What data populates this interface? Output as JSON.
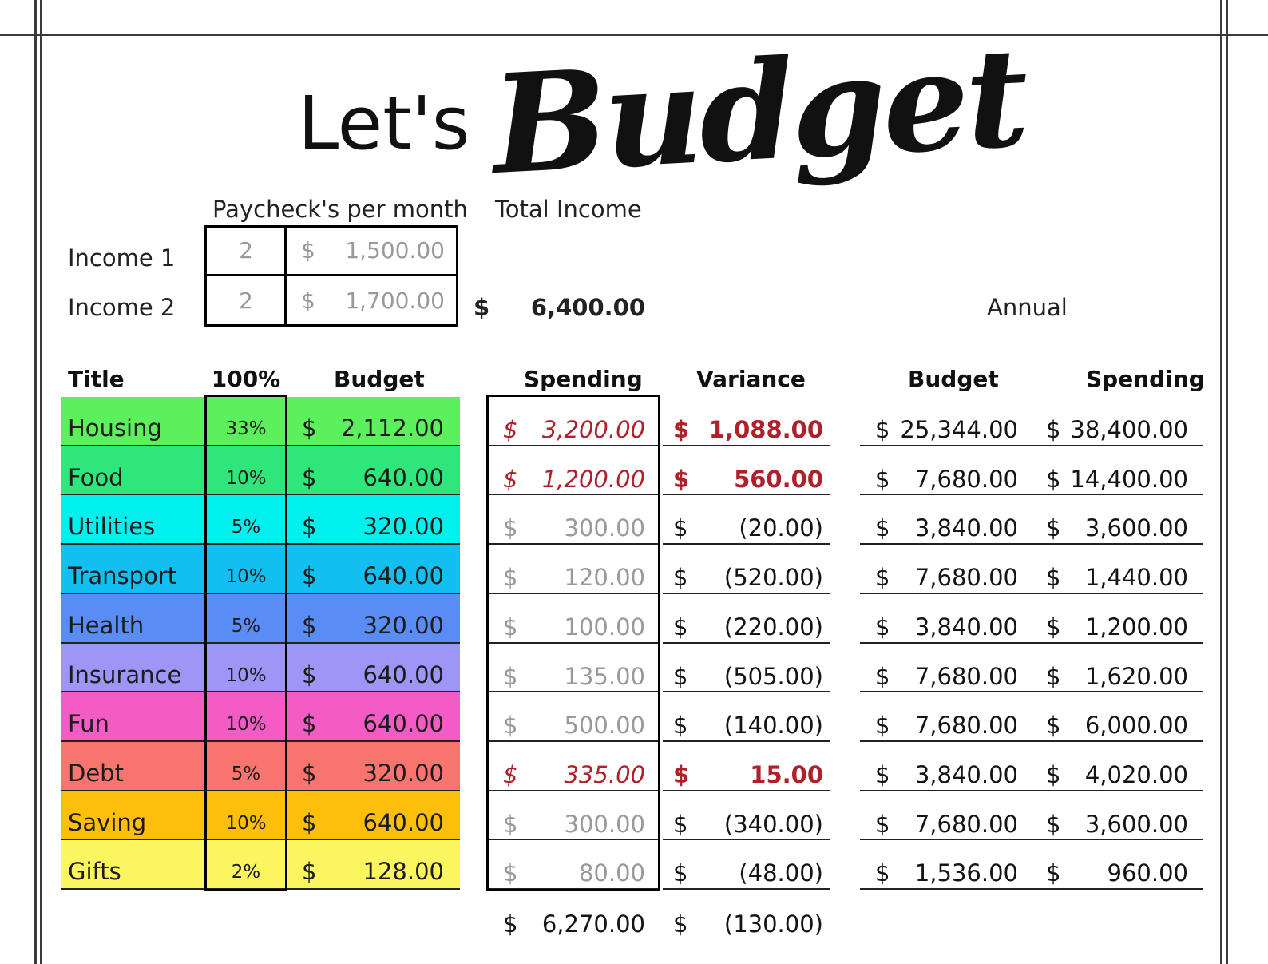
{
  "title": {
    "lets": "Let's",
    "budget": "Budget"
  },
  "income": {
    "paychecks_header": "Paycheck's per month",
    "total_header": "Total Income",
    "rows": [
      {
        "label": "Income 1",
        "paychecks": "2",
        "currency": "$",
        "amount": "1,500.00"
      },
      {
        "label": "Income 2",
        "paychecks": "2",
        "currency": "$",
        "amount": "1,700.00"
      }
    ],
    "total_currency": "$",
    "total_amount": "6,400.00"
  },
  "annual_label": "Annual",
  "headers": {
    "title": "Title",
    "pct": "100%",
    "budget": "Budget",
    "spending": "Spending",
    "variance": "Variance",
    "annual_budget": "Budget",
    "annual_spending": "Spending"
  },
  "currency": "$",
  "categories": [
    {
      "title": "Housing",
      "pct": "33%",
      "budget": "2,112.00",
      "spending": "3,200.00",
      "variance": "1,088.00",
      "over": true,
      "annual_budget": "25,344.00",
      "annual_spending": "38,400.00",
      "color": "#5cf05c"
    },
    {
      "title": "Food",
      "pct": "10%",
      "budget": "640.00",
      "spending": "1,200.00",
      "variance": "560.00",
      "over": true,
      "annual_budget": "7,680.00",
      "annual_spending": "14,400.00",
      "color": "#2ee67a"
    },
    {
      "title": "Utilities",
      "pct": "5%",
      "budget": "320.00",
      "spending": "300.00",
      "variance": "(20.00)",
      "over": false,
      "annual_budget": "3,840.00",
      "annual_spending": "3,600.00",
      "color": "#00f0ee"
    },
    {
      "title": "Transport",
      "pct": "10%",
      "budget": "640.00",
      "spending": "120.00",
      "variance": "(520.00)",
      "over": false,
      "annual_budget": "7,680.00",
      "annual_spending": "1,440.00",
      "color": "#12bff0"
    },
    {
      "title": "Health",
      "pct": "5%",
      "budget": "320.00",
      "spending": "100.00",
      "variance": "(220.00)",
      "over": false,
      "annual_budget": "3,840.00",
      "annual_spending": "1,200.00",
      "color": "#5a8cf5"
    },
    {
      "title": "Insurance",
      "pct": "10%",
      "budget": "640.00",
      "spending": "135.00",
      "variance": "(505.00)",
      "over": false,
      "annual_budget": "7,680.00",
      "annual_spending": "1,620.00",
      "color": "#9d96f7"
    },
    {
      "title": "Fun",
      "pct": "10%",
      "budget": "640.00",
      "spending": "500.00",
      "variance": "(140.00)",
      "over": false,
      "annual_budget": "7,680.00",
      "annual_spending": "6,000.00",
      "color": "#f25cc4"
    },
    {
      "title": "Debt",
      "pct": "5%",
      "budget": "320.00",
      "spending": "335.00",
      "variance": "15.00",
      "over": true,
      "annual_budget": "3,840.00",
      "annual_spending": "4,020.00",
      "color": "#f7756e"
    },
    {
      "title": "Saving",
      "pct": "10%",
      "budget": "640.00",
      "spending": "300.00",
      "variance": "(340.00)",
      "over": false,
      "annual_budget": "7,680.00",
      "annual_spending": "3,600.00",
      "color": "#fdbf0c"
    },
    {
      "title": "Gifts",
      "pct": "2%",
      "budget": "128.00",
      "spending": "80.00",
      "variance": "(48.00)",
      "over": false,
      "annual_budget": "1,536.00",
      "annual_spending": "960.00",
      "color": "#fbf660"
    }
  ],
  "totals": {
    "spending": "6,270.00",
    "variance": "(130.00)"
  }
}
